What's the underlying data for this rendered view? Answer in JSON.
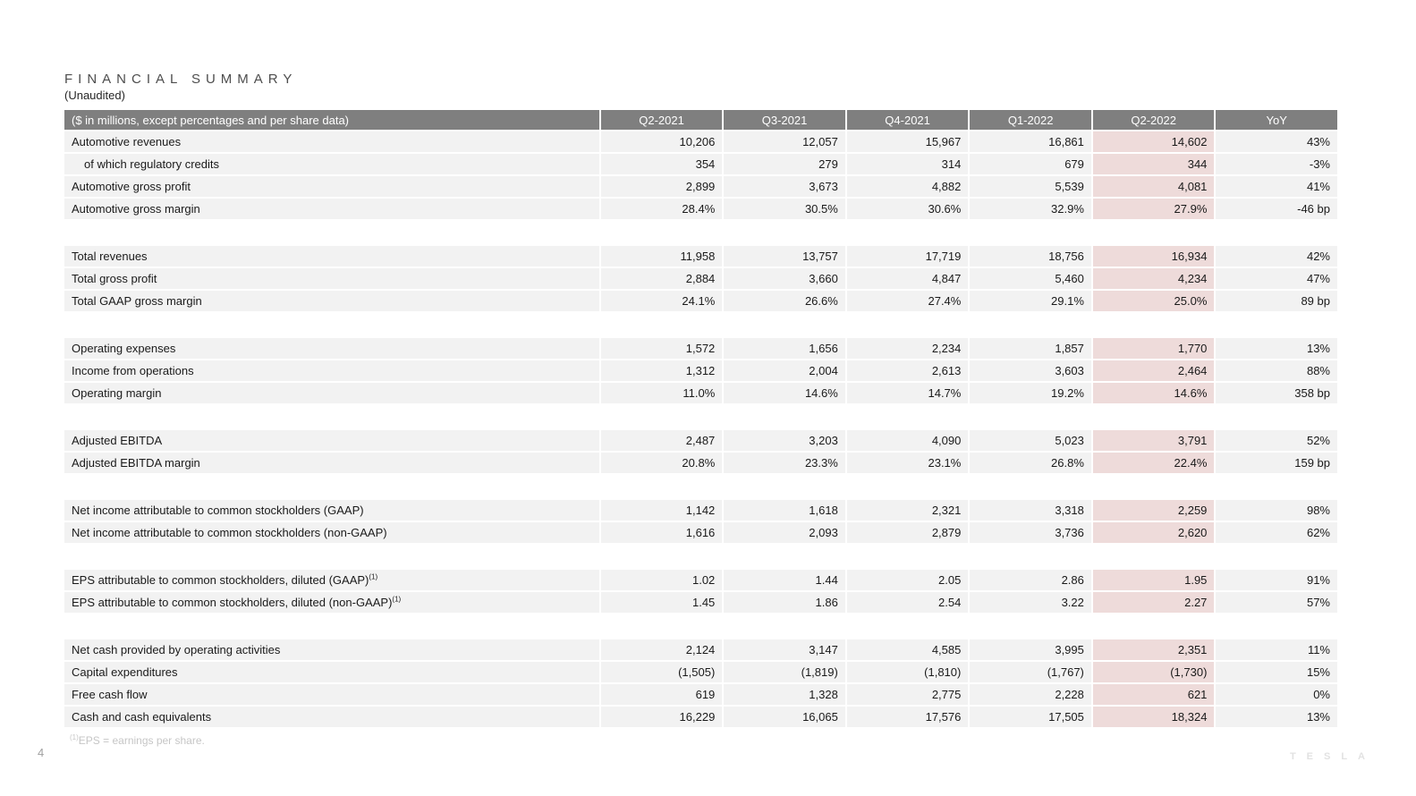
{
  "page": {
    "title": "FINANCIAL SUMMARY",
    "subtitle": "(Unaudited)",
    "page_number": "4",
    "footnote_sup": "(1)",
    "footnote_text": "EPS = earnings per share.",
    "watermark": "TESLA"
  },
  "colors": {
    "header_bg": "#7f7f7f",
    "header_text": "#ffffff",
    "row_bg": "#f2f2f2",
    "highlight_bg": "#eedbda",
    "body_text": "#1a1a1a"
  },
  "table": {
    "columns": [
      "($ in millions, except percentages and per share data)",
      "Q2-2021",
      "Q3-2021",
      "Q4-2021",
      "Q1-2022",
      "Q2-2022",
      "YoY"
    ],
    "highlight_column_label": "Q2-2022",
    "highlight_value_index": 4,
    "groups": [
      {
        "rows": [
          {
            "label": "Automotive revenues",
            "values": [
              "10,206",
              "12,057",
              "15,967",
              "16,861",
              "14,602",
              "43%"
            ]
          },
          {
            "label": "of which regulatory credits",
            "indent": true,
            "values": [
              "354",
              "279",
              "314",
              "679",
              "344",
              "-3%"
            ]
          },
          {
            "label": "Automotive gross profit",
            "values": [
              "2,899",
              "3,673",
              "4,882",
              "5,539",
              "4,081",
              "41%"
            ]
          },
          {
            "label": "Automotive gross margin",
            "values": [
              "28.4%",
              "30.5%",
              "30.6%",
              "32.9%",
              "27.9%",
              "-46 bp"
            ]
          }
        ]
      },
      {
        "rows": [
          {
            "label": "Total revenues",
            "values": [
              "11,958",
              "13,757",
              "17,719",
              "18,756",
              "16,934",
              "42%"
            ]
          },
          {
            "label": "Total gross profit",
            "values": [
              "2,884",
              "3,660",
              "4,847",
              "5,460",
              "4,234",
              "47%"
            ]
          },
          {
            "label": "Total GAAP gross margin",
            "values": [
              "24.1%",
              "26.6%",
              "27.4%",
              "29.1%",
              "25.0%",
              "89 bp"
            ]
          }
        ]
      },
      {
        "rows": [
          {
            "label": "Operating expenses",
            "values": [
              "1,572",
              "1,656",
              "2,234",
              "1,857",
              "1,770",
              "13%"
            ]
          },
          {
            "label": "Income from operations",
            "values": [
              "1,312",
              "2,004",
              "2,613",
              "3,603",
              "2,464",
              "88%"
            ]
          },
          {
            "label": "Operating margin",
            "values": [
              "11.0%",
              "14.6%",
              "14.7%",
              "19.2%",
              "14.6%",
              "358 bp"
            ]
          }
        ]
      },
      {
        "rows": [
          {
            "label": "Adjusted EBITDA",
            "values": [
              "2,487",
              "3,203",
              "4,090",
              "5,023",
              "3,791",
              "52%"
            ]
          },
          {
            "label": "Adjusted EBITDA margin",
            "values": [
              "20.8%",
              "23.3%",
              "23.1%",
              "26.8%",
              "22.4%",
              "159 bp"
            ]
          }
        ]
      },
      {
        "rows": [
          {
            "label": "Net income attributable to common stockholders (GAAP)",
            "values": [
              "1,142",
              "1,618",
              "2,321",
              "3,318",
              "2,259",
              "98%"
            ]
          },
          {
            "label": "Net income attributable to common stockholders (non-GAAP)",
            "values": [
              "1,616",
              "2,093",
              "2,879",
              "3,736",
              "2,620",
              "62%"
            ]
          }
        ]
      },
      {
        "rows": [
          {
            "label": "EPS attributable to common stockholders, diluted (GAAP)",
            "sup": "(1)",
            "values": [
              "1.02",
              "1.44",
              "2.05",
              "2.86",
              "1.95",
              "91%"
            ]
          },
          {
            "label": "EPS attributable to common stockholders, diluted (non-GAAP)",
            "sup": "(1)",
            "values": [
              "1.45",
              "1.86",
              "2.54",
              "3.22",
              "2.27",
              "57%"
            ]
          }
        ]
      },
      {
        "rows": [
          {
            "label": "Net cash provided by operating activities",
            "values": [
              "2,124",
              "3,147",
              "4,585",
              "3,995",
              "2,351",
              "11%"
            ]
          },
          {
            "label": "Capital expenditures",
            "values": [
              "(1,505)",
              "(1,819)",
              "(1,810)",
              "(1,767)",
              "(1,730)",
              "15%"
            ]
          },
          {
            "label": "Free cash flow",
            "values": [
              "619",
              "1,328",
              "2,775",
              "2,228",
              "621",
              "0%"
            ]
          },
          {
            "label": "Cash and cash equivalents",
            "values": [
              "16,229",
              "16,065",
              "17,576",
              "17,505",
              "18,324",
              "13%"
            ]
          }
        ]
      }
    ]
  }
}
